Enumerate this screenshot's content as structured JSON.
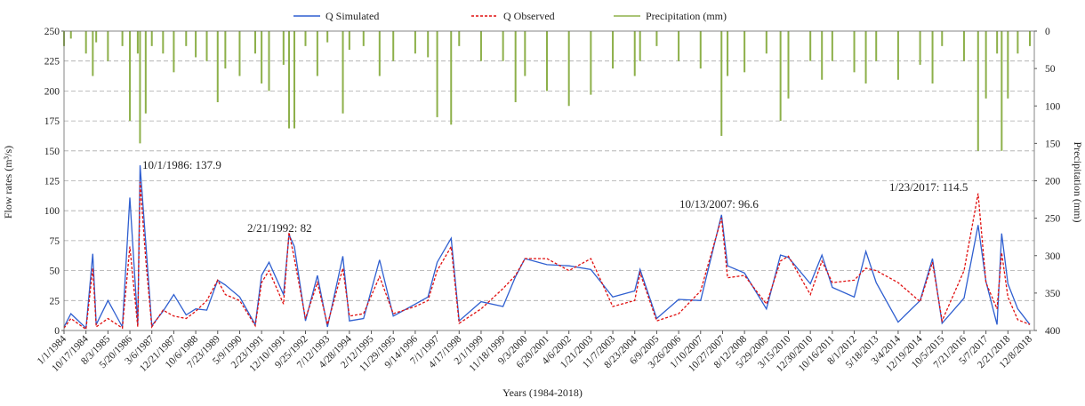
{
  "chart_data": {
    "type": "line",
    "x_label": "Years (1984-2018)",
    "y_label": "Flow rates (m³/s)",
    "y2_label": "Precipitation (mm)",
    "x": [
      "1/1/1984",
      "4/1/1984",
      "10/17/1984",
      "1/15/1985",
      "3/1/1985",
      "8/3/1985",
      "2/10/1986",
      "5/20/1986",
      "9/1/1986",
      "10/1/1986",
      "12/15/1986",
      "3/6/1987",
      "8/1/1987",
      "12/21/1987",
      "6/1/1988",
      "10/6/1988",
      "3/1/1989",
      "7/23/1989",
      "11/1/1989",
      "5/9/1990",
      "12/1/1990",
      "2/23/1991",
      "6/1/1991",
      "12/10/1991",
      "2/21/1992",
      "5/1/1992",
      "9/25/1992",
      "3/1/1993",
      "7/12/1993",
      "2/1/1994",
      "4/28/1994",
      "11/1/1994",
      "6/1/1995",
      "11/29/1995",
      "9/14/1996",
      "3/1/1997",
      "7/1/1997",
      "1/1/1998",
      "4/17/1998",
      "2/1/1999",
      "11/18/1999",
      "5/1/2000",
      "9/3/2000",
      "6/20/2001",
      "4/6/2002",
      "1/21/2003",
      "11/7/2003",
      "8/23/2004",
      "11/1/2004",
      "6/9/2005",
      "3/26/2006",
      "1/10/2007",
      "10/13/2007",
      "1/1/2008",
      "8/12/2008",
      "5/29/2009",
      "12/1/2009",
      "3/15/2010",
      "12/30/2010",
      "6/1/2011",
      "10/16/2011",
      "8/1/2012",
      "1/1/2013",
      "5/18/2013",
      "3/4/2014",
      "12/19/2014",
      "6/1/2015",
      "10/5/2015",
      "7/21/2016",
      "1/23/2017",
      "5/7/2017",
      "10/1/2017",
      "12/1/2017",
      "2/21/2018",
      "7/1/2018",
      "12/8/2018"
    ],
    "series": [
      {
        "name": "Q Simulated",
        "color": "#2f5fd0",
        "style": "solid",
        "values": [
          3,
          14,
          2,
          64,
          5,
          25,
          3,
          111,
          5,
          137.9,
          74,
          4,
          16,
          30,
          13,
          18,
          17,
          42,
          38,
          28,
          5,
          46,
          57,
          30,
          80,
          70,
          8,
          46,
          3,
          62,
          8,
          10,
          59,
          12,
          22,
          28,
          57,
          77,
          8,
          24,
          20,
          45,
          60,
          55,
          54,
          51,
          28,
          33,
          51,
          10,
          26,
          25,
          96.6,
          54,
          48,
          18,
          63,
          61,
          39,
          63,
          36,
          28,
          66,
          40,
          7,
          25,
          60,
          6,
          27,
          88,
          41,
          5,
          81,
          39,
          18,
          5
        ]
      },
      {
        "name": "Q Observed",
        "color": "#e01010",
        "style": "dashed",
        "values": [
          2,
          10,
          1,
          52,
          3,
          10,
          2,
          70,
          3,
          124,
          60,
          3,
          17,
          12,
          10,
          16,
          25,
          42,
          30,
          25,
          4,
          40,
          50,
          22,
          82,
          60,
          10,
          40,
          5,
          52,
          12,
          14,
          45,
          14,
          20,
          25,
          50,
          70,
          6,
          18,
          35,
          46,
          60,
          60,
          50,
          60,
          20,
          25,
          48,
          8,
          14,
          33,
          94,
          44,
          46,
          22,
          58,
          62,
          30,
          58,
          40,
          42,
          52,
          50,
          40,
          24,
          57,
          8,
          50,
          114.5,
          40,
          18,
          65,
          28,
          9,
          5
        ]
      },
      {
        "name": "Precipitation (mm)",
        "color": "#8db04a",
        "style": "bar",
        "axis": "y2",
        "values": [
          20,
          10,
          30,
          60,
          15,
          40,
          20,
          120,
          30,
          150,
          110,
          20,
          30,
          55,
          20,
          35,
          40,
          95,
          50,
          60,
          30,
          70,
          80,
          45,
          130,
          130,
          20,
          60,
          15,
          110,
          25,
          20,
          60,
          40,
          30,
          35,
          115,
          125,
          20,
          40,
          40,
          95,
          60,
          80,
          100,
          85,
          50,
          60,
          40,
          20,
          40,
          50,
          140,
          60,
          55,
          30,
          120,
          90,
          40,
          65,
          40,
          55,
          70,
          40,
          65,
          45,
          70,
          20,
          40,
          160,
          90,
          30,
          160,
          90,
          30,
          20
        ]
      }
    ],
    "xlim": [
      "1/1/1984",
      "12/8/2018"
    ],
    "xticks": [
      "1/1/1984",
      "10/17/1984",
      "8/3/1985",
      "5/20/1986",
      "3/6/1987",
      "12/21/1987",
      "10/6/1988",
      "7/23/1989",
      "5/9/1990",
      "2/23/1991",
      "12/10/1991",
      "9/25/1992",
      "7/12/1993",
      "4/28/1994",
      "2/12/1995",
      "11/29/1995",
      "9/14/1996",
      "7/1/1997",
      "4/17/1998",
      "2/1/1999",
      "11/18/1999",
      "9/3/2000",
      "6/20/2001",
      "4/6/2002",
      "1/21/2003",
      "11/7/2003",
      "8/23/2004",
      "6/9/2005",
      "3/26/2006",
      "1/10/2007",
      "10/27/2007",
      "8/12/2008",
      "5/29/2009",
      "3/15/2010",
      "12/30/2010",
      "10/16/2011",
      "8/1/2012",
      "5/18/2013",
      "3/4/2014",
      "12/19/2014",
      "10/5/2015",
      "7/21/2016",
      "5/7/2017",
      "2/21/2018",
      "12/8/2018"
    ],
    "ylim": [
      0,
      250
    ],
    "yticks": [
      0,
      25,
      50,
      75,
      100,
      125,
      150,
      175,
      200,
      225,
      250
    ],
    "y2lim": [
      0,
      400
    ],
    "y2ticks": [
      0,
      50,
      100,
      150,
      200,
      250,
      300,
      350,
      400
    ],
    "y2_inverted": true,
    "grid": true,
    "legend": "top",
    "annotations": [
      "10/1/1986: 137.9",
      "2/21/1992: 82",
      "10/13/2007: 96.6",
      "1/23/2017: 114.5"
    ]
  }
}
